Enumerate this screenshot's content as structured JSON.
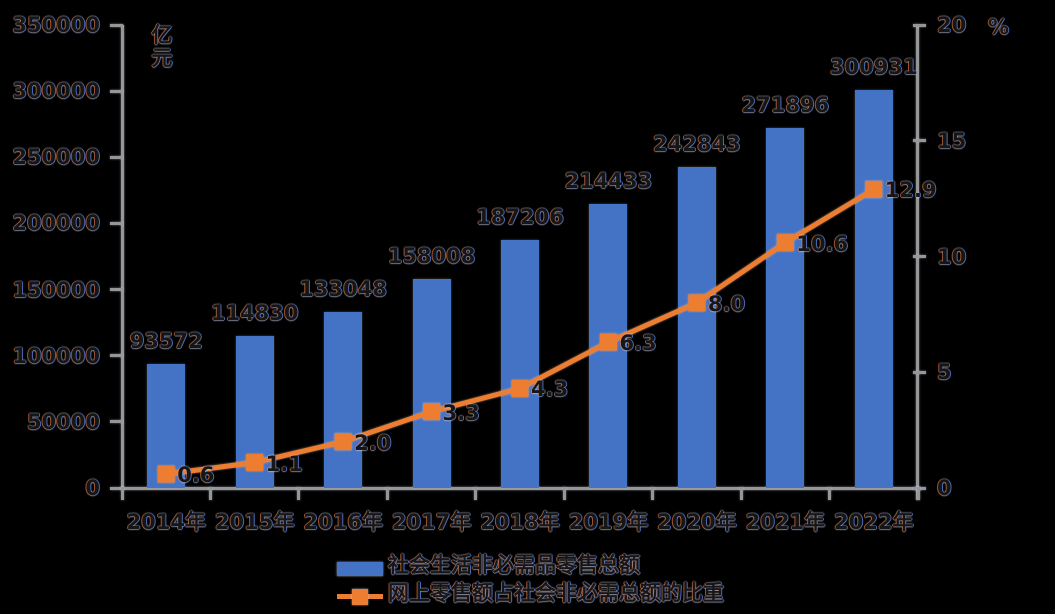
{
  "chart_data": {
    "type": "combo",
    "title": "",
    "categories": [
      "2014年",
      "2015年",
      "2016年",
      "2017年",
      "2018年",
      "2019年",
      "2020年",
      "2021年",
      "2022年"
    ],
    "series": [
      {
        "name": "社会生活非必需品零售总额",
        "type": "bar",
        "axis": "left",
        "color": "#4472C4",
        "values": [
          93572,
          114830,
          133048,
          158008,
          187206,
          214433,
          242843,
          271896,
          300931
        ]
      },
      {
        "name": "网上零售额占社会非必需总额的比重",
        "type": "line",
        "axis": "right",
        "color": "#ED7D31",
        "marker": "square",
        "label_decimals": 1,
        "values": [
          0.6,
          1.1,
          2.0,
          3.3,
          4.3,
          6.3,
          8.0,
          10.6,
          12.9
        ]
      }
    ],
    "left_axis": {
      "title": "亿元",
      "min": 0,
      "max": 350000,
      "step": 50000,
      "tick_labels": [
        "350000",
        "300000",
        "250000",
        "200000",
        "150000",
        "100000",
        "50000",
        "0"
      ]
    },
    "right_axis": {
      "title": "%",
      "min": 0,
      "max": 20,
      "step": 5,
      "tick_labels": [
        "20",
        "15",
        "10",
        "5",
        "0"
      ]
    },
    "grid": false,
    "legend_position": "bottom",
    "axis_color": "#969696",
    "background": "#000000"
  }
}
